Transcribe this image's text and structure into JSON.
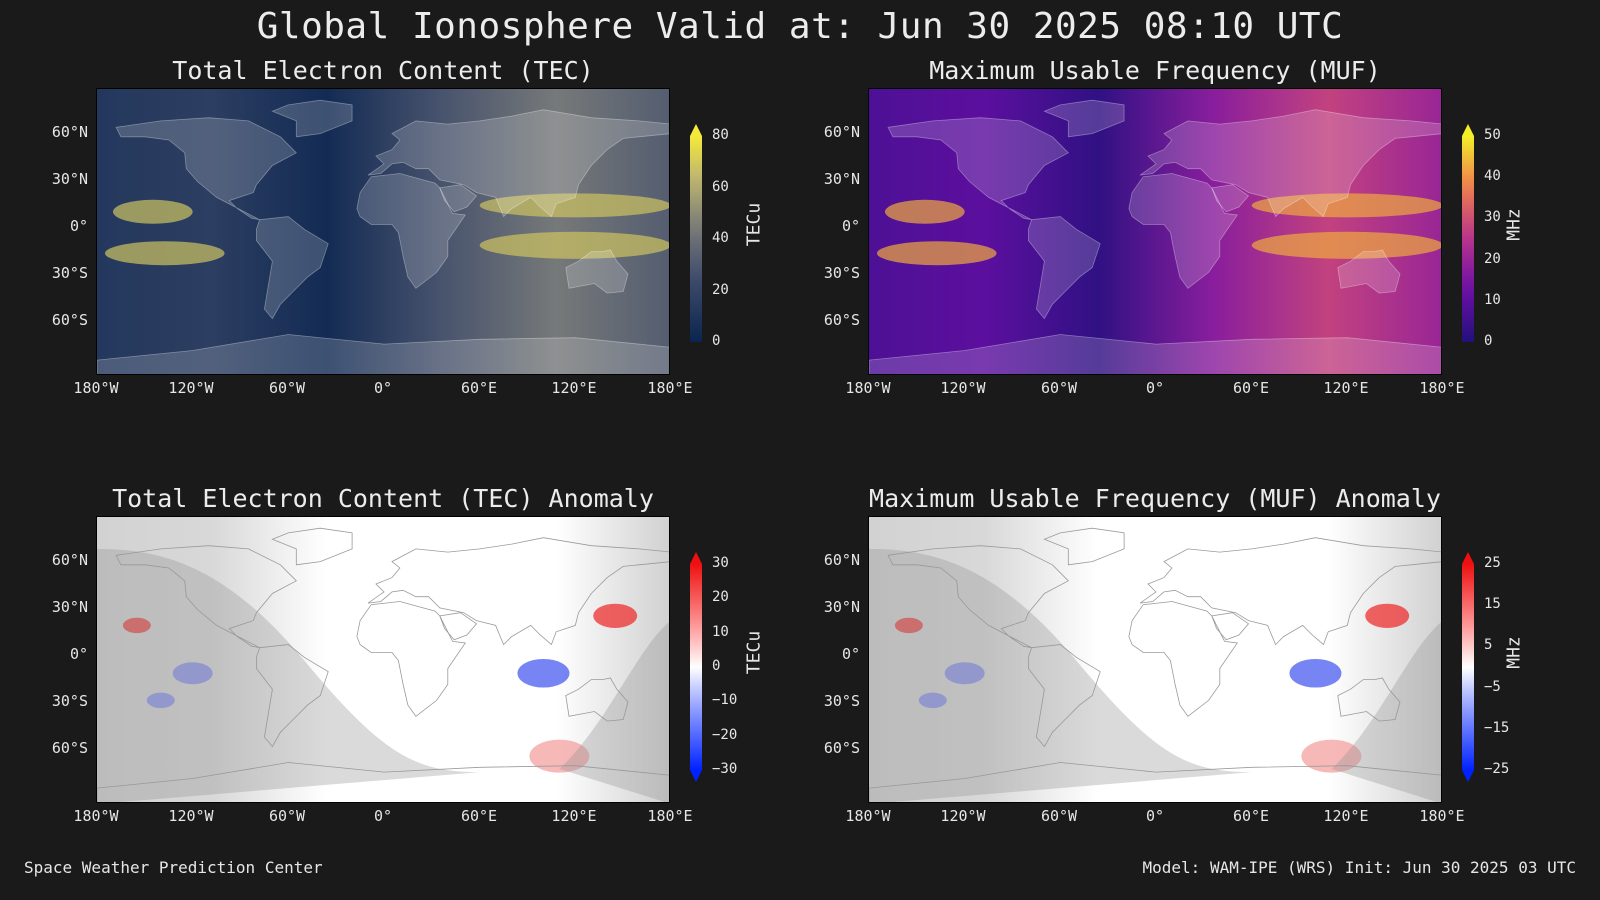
{
  "title": "Global Ionosphere Valid at: Jun 30 2025 08:10 UTC",
  "panels": [
    {
      "title": "Total Electron Content (TEC)",
      "unit": "TECu",
      "kind": "field",
      "palette": "cividis",
      "ticks": [
        "0",
        "20",
        "40",
        "60",
        "80"
      ],
      "range": [
        0,
        80
      ]
    },
    {
      "title": "Maximum Usable Frequency (MUF)",
      "unit": "MHz",
      "kind": "field",
      "palette": "plasma",
      "ticks": [
        "0",
        "10",
        "20",
        "30",
        "40",
        "50"
      ],
      "range": [
        0,
        50
      ]
    },
    {
      "title": "Total Electron Content (TEC) Anomaly",
      "unit": "TECu",
      "kind": "anomaly",
      "palette": "bwr",
      "ticks": [
        "30",
        "20",
        "10",
        "0",
        "−10",
        "−20",
        "−30"
      ],
      "range": [
        -30,
        30
      ]
    },
    {
      "title": "Maximum Usable Frequency (MUF) Anomaly",
      "unit": "MHz",
      "kind": "anomaly",
      "palette": "bwr",
      "ticks": [
        "25",
        "15",
        "5",
        "−5",
        "−15",
        "−25"
      ],
      "range": [
        -25,
        25
      ]
    }
  ],
  "lat_labels": [
    "60°N",
    "30°N",
    "0°",
    "30°S",
    "60°S"
  ],
  "lon_labels": [
    "180°W",
    "120°W",
    "60°W",
    "0°",
    "60°E",
    "120°E",
    "180°E"
  ],
  "footer": {
    "left": "Space Weather Prediction Center",
    "right": "Model: WAM-IPE (WRS) Init: Jun 30 2025 03 UTC"
  },
  "colors": {
    "background": "#1a1a1a",
    "text": "#e6e6e6"
  }
}
